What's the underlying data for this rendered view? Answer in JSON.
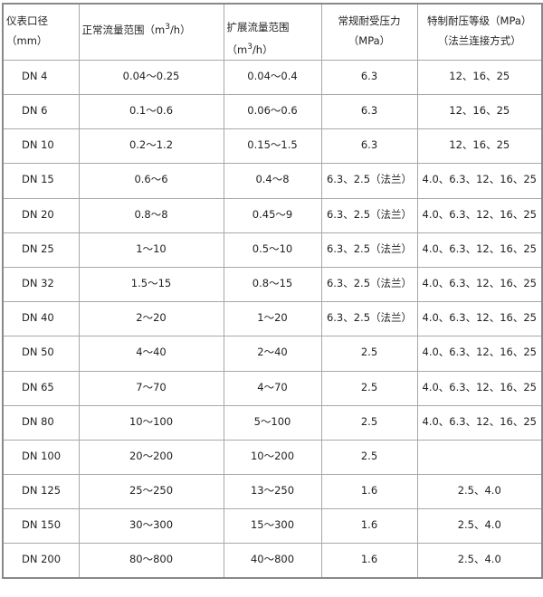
{
  "headers": {
    "diameter": "仪表口径（mm）",
    "normal_flow_prefix": "正常流量范围（m",
    "normal_flow_sup": "3",
    "normal_flow_suffix": "/h）",
    "extended_flow_prefix": "扩展流量范围（m",
    "extended_flow_sup": "3",
    "extended_flow_suffix": "/h）",
    "normal_pressure": "常规耐受压力（MPa）",
    "special_pressure": "特制耐压等级（MPa）（法兰连接方式）"
  },
  "rows": [
    [
      "DN 4",
      "0.04～0.25",
      "0.04～0.4",
      "6.3",
      "12、16、25"
    ],
    [
      "DN 6",
      "0.1～0.6",
      "0.06～0.6",
      "6.3",
      "12、16、25"
    ],
    [
      "DN 10",
      "0.2～1.2",
      "0.15～1.5",
      "6.3",
      "12、16、25"
    ],
    [
      "DN 15",
      "0.6～6",
      "0.4～8",
      "6.3、2.5（法兰）",
      "4.0、6.3、12、16、25"
    ],
    [
      "DN 20",
      "0.8～8",
      "0.45～9",
      "6.3、2.5（法兰）",
      "4.0、6.3、12、16、25"
    ],
    [
      "DN 25",
      "1～10",
      "0.5～10",
      "6.3、2.5（法兰）",
      "4.0、6.3、12、16、25"
    ],
    [
      "DN 32",
      "1.5～15",
      "0.8～15",
      "6.3、2.5（法兰）",
      "4.0、6.3、12、16、25"
    ],
    [
      "DN 40",
      "2～20",
      "1～20",
      "6.3、2.5（法兰）",
      "4.0、6.3、12、16、25"
    ],
    [
      "DN 50",
      "4～40",
      "2～40",
      "2.5",
      "4.0、6.3、12、16、25"
    ],
    [
      "DN 65",
      "7～70",
      "4～70",
      "2.5",
      "4.0、6.3、12、16、25"
    ],
    [
      "DN 80",
      "10～100",
      "5～100",
      "2.5",
      "4.0、6.3、12、16、25"
    ],
    [
      "DN 100",
      "20～200",
      "10～200",
      "2.5",
      ""
    ],
    [
      "DN 125",
      "25～250",
      "13～250",
      "1.6",
      "2.5、4.0"
    ],
    [
      "DN 150",
      "30～300",
      "15～300",
      "1.6",
      "2.5、4.0"
    ],
    [
      "DN 200",
      "80～800",
      "40～800",
      "1.6",
      "2.5、4.0"
    ]
  ]
}
